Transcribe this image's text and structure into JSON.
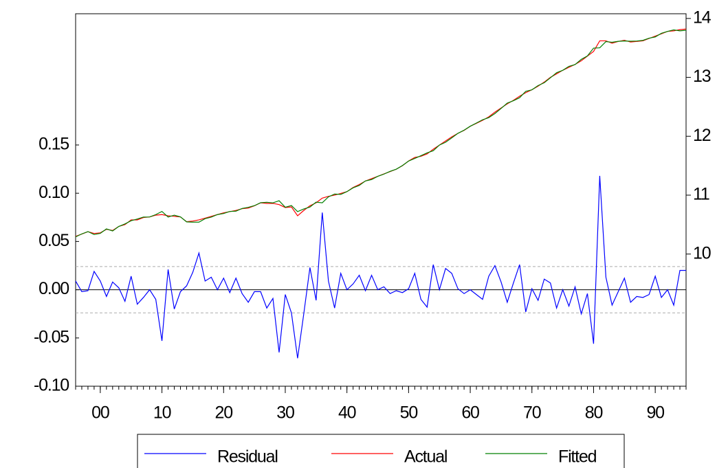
{
  "chart_data": {
    "type": "line",
    "x": [
      1896,
      1897,
      1898,
      1899,
      1900,
      1901,
      1902,
      1903,
      1904,
      1905,
      1906,
      1907,
      1908,
      1909,
      1910,
      1911,
      1912,
      1913,
      1914,
      1915,
      1916,
      1917,
      1918,
      1919,
      1920,
      1921,
      1922,
      1923,
      1924,
      1925,
      1926,
      1927,
      1928,
      1929,
      1930,
      1931,
      1932,
      1933,
      1934,
      1935,
      1936,
      1937,
      1938,
      1939,
      1940,
      1941,
      1942,
      1943,
      1944,
      1945,
      1946,
      1947,
      1948,
      1949,
      1950,
      1951,
      1952,
      1953,
      1954,
      1955,
      1956,
      1957,
      1958,
      1959,
      1960,
      1961,
      1962,
      1963,
      1964,
      1965,
      1966,
      1967,
      1968,
      1969,
      1970,
      1971,
      1972,
      1973,
      1974,
      1975,
      1976,
      1977,
      1978,
      1979,
      1980,
      1981,
      1982,
      1983,
      1984,
      1985,
      1986,
      1987,
      1988,
      1989,
      1990,
      1991,
      1992,
      1993,
      1994,
      1995
    ],
    "xlim": [
      1896,
      1995
    ],
    "xticks": [
      {
        "value": 1900,
        "label": "00"
      },
      {
        "value": 1910,
        "label": "10"
      },
      {
        "value": 1920,
        "label": "20"
      },
      {
        "value": 1930,
        "label": "30"
      },
      {
        "value": 1940,
        "label": "40"
      },
      {
        "value": 1950,
        "label": "50"
      },
      {
        "value": 1960,
        "label": "60"
      },
      {
        "value": 1970,
        "label": "70"
      },
      {
        "value": 1980,
        "label": "80"
      },
      {
        "value": 1990,
        "label": "90"
      }
    ],
    "ylim": [
      -0.1,
      0.286
    ],
    "yticks": [
      {
        "value": -0.1,
        "label": "-0.10"
      },
      -0.05,
      {
        "value": 0,
        "label": "0.00"
      },
      0.05,
      {
        "value": 0.1,
        "label": "0.10"
      },
      0.15
    ],
    "y2lim": [
      7.756,
      14.08
    ],
    "y2ticks": [
      10,
      11,
      12,
      13,
      14
    ],
    "bands": [
      0.024,
      -0.024
    ],
    "legend": "bottom",
    "series": [
      {
        "name": "Residual",
        "color": "#0000ff",
        "axis": "y",
        "values": [
          0.009,
          -0.002,
          -0.001,
          0.019,
          0.009,
          -0.007,
          0.008,
          0.002,
          -0.012,
          0.014,
          -0.015,
          -0.008,
          0.0,
          -0.01,
          -0.053,
          0.021,
          -0.02,
          -0.002,
          0.004,
          0.018,
          0.038,
          0.009,
          0.013,
          0.0,
          0.012,
          -0.003,
          0.012,
          -0.004,
          -0.013,
          -0.002,
          -0.002,
          -0.019,
          -0.009,
          -0.065,
          -0.005,
          -0.024,
          -0.071,
          -0.025,
          0.023,
          -0.011,
          0.08,
          0.009,
          -0.019,
          0.017,
          0.0,
          0.006,
          0.015,
          -0.001,
          0.015,
          0.0,
          0.003,
          -0.004,
          -0.001,
          -0.003,
          0.001,
          0.017,
          -0.01,
          -0.018,
          0.026,
          0.0,
          0.022,
          0.017,
          0.001,
          -0.004,
          0.0,
          -0.005,
          -0.01,
          0.014,
          0.025,
          0.008,
          -0.013,
          0.007,
          0.026,
          -0.023,
          0.001,
          -0.011,
          0.011,
          0.007,
          -0.019,
          0.0,
          -0.017,
          0.003,
          -0.025,
          -0.004,
          -0.056,
          0.118,
          0.013,
          -0.016,
          -0.002,
          0.012,
          -0.013,
          -0.007,
          -0.008,
          -0.005,
          0.014,
          -0.008,
          0.0,
          -0.016,
          0.02,
          0.02
        ]
      },
      {
        "name": "Actual",
        "color": "#ff0000",
        "axis": "y2",
        "values": [
          10.3,
          10.34,
          10.38,
          10.35,
          10.36,
          10.42,
          10.4,
          10.47,
          10.5,
          10.58,
          10.58,
          10.62,
          10.63,
          10.66,
          10.67,
          10.65,
          10.64,
          10.63,
          10.55,
          10.56,
          10.58,
          10.61,
          10.64,
          10.67,
          10.7,
          10.72,
          10.74,
          10.77,
          10.78,
          10.82,
          10.87,
          10.86,
          10.86,
          10.84,
          10.79,
          10.8,
          10.65,
          10.74,
          10.82,
          10.87,
          10.95,
          10.98,
          11.0,
          11.03,
          11.06,
          11.13,
          11.18,
          11.24,
          11.28,
          11.32,
          11.36,
          11.4,
          11.44,
          11.5,
          11.58,
          11.64,
          11.66,
          11.7,
          11.78,
          11.85,
          11.92,
          11.99,
          12.05,
          12.1,
          12.17,
          12.22,
          12.27,
          12.33,
          12.41,
          12.48,
          12.55,
          12.61,
          12.68,
          12.74,
          12.79,
          12.85,
          12.92,
          13.0,
          13.06,
          13.12,
          13.17,
          13.22,
          13.28,
          13.36,
          13.44,
          13.62,
          13.62,
          13.58,
          13.61,
          13.63,
          13.6,
          13.61,
          13.62,
          13.66,
          13.7,
          13.74,
          13.78,
          13.79,
          13.81,
          13.82
        ]
      },
      {
        "name": "Fitted",
        "color": "#008000",
        "axis": "y2",
        "values": [
          10.291,
          10.342,
          10.381,
          10.331,
          10.351,
          10.427,
          10.392,
          10.468,
          10.512,
          10.566,
          10.595,
          10.628,
          10.63,
          10.67,
          10.723,
          10.629,
          10.66,
          10.632,
          10.546,
          10.542,
          10.542,
          10.601,
          10.627,
          10.67,
          10.688,
          10.723,
          10.728,
          10.774,
          10.793,
          10.822,
          10.872,
          10.879,
          10.869,
          10.905,
          10.795,
          10.824,
          10.721,
          10.765,
          10.797,
          10.881,
          10.87,
          10.971,
          11.019,
          11.013,
          11.06,
          11.124,
          11.165,
          11.241,
          11.265,
          11.32,
          11.357,
          11.404,
          11.441,
          11.503,
          11.579,
          11.623,
          11.67,
          11.718,
          11.754,
          11.85,
          11.898,
          11.973,
          12.049,
          12.104,
          12.17,
          12.225,
          12.28,
          12.316,
          12.385,
          12.472,
          12.563,
          12.603,
          12.654,
          12.763,
          12.789,
          12.861,
          12.909,
          12.993,
          13.079,
          13.12,
          13.187,
          13.217,
          13.305,
          13.364,
          13.496,
          13.502,
          13.607,
          13.596,
          13.612,
          13.618,
          13.613,
          13.617,
          13.628,
          13.665,
          13.686,
          13.748,
          13.78,
          13.806,
          13.79,
          13.8
        ]
      }
    ]
  }
}
